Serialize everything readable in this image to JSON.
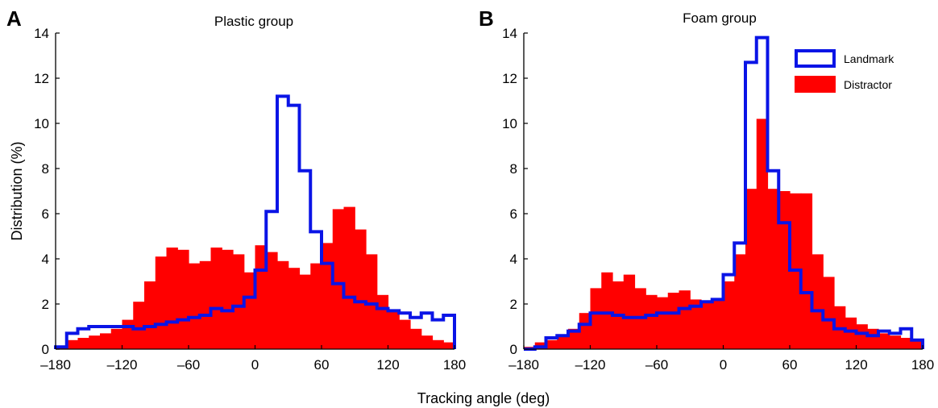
{
  "figure": {
    "shared_xlabel": "Tracking angle (deg)",
    "shared_ylabel": "Distribution (%)"
  },
  "legend": {
    "entries": [
      "Landmark",
      "Distractor"
    ],
    "placement": "top-right of panel B"
  },
  "colors": {
    "landmark": "#0a14e6",
    "distractor": "#ff0000",
    "axis": "#000000"
  },
  "chart_data": [
    {
      "type": "histogram",
      "panel_label": "A",
      "title": "Plastic group",
      "xlabel": "Tracking angle (deg)",
      "ylabel": "Distribution (%)",
      "xlim": [
        -180,
        180
      ],
      "ylim": [
        0,
        14
      ],
      "xticks": [
        "–180",
        "–120",
        "–60",
        "0",
        "60",
        "120",
        "180"
      ],
      "yticks": [
        "0",
        "2",
        "4",
        "6",
        "8",
        "10",
        "12",
        "14"
      ],
      "bin_width": 10,
      "bin_starts": [
        -180,
        -170,
        -160,
        -150,
        -140,
        -130,
        -120,
        -110,
        -100,
        -90,
        -80,
        -70,
        -60,
        -50,
        -40,
        -30,
        -20,
        -10,
        0,
        10,
        20,
        30,
        40,
        50,
        60,
        70,
        80,
        90,
        100,
        110,
        120,
        130,
        140,
        150,
        160,
        170
      ],
      "series": [
        {
          "name": "Distractor",
          "style": "filled",
          "values": [
            0.1,
            0.4,
            0.5,
            0.6,
            0.7,
            0.9,
            1.3,
            2.1,
            3.0,
            4.1,
            4.5,
            4.4,
            3.8,
            3.9,
            4.5,
            4.4,
            4.2,
            3.4,
            4.6,
            4.3,
            3.9,
            3.6,
            3.3,
            3.8,
            4.7,
            6.2,
            6.3,
            5.3,
            4.2,
            2.4,
            1.7,
            1.3,
            0.9,
            0.6,
            0.4,
            0.3
          ]
        },
        {
          "name": "Landmark",
          "style": "outline",
          "values": [
            0.1,
            0.7,
            0.9,
            1.0,
            1.0,
            1.0,
            1.0,
            0.9,
            1.0,
            1.1,
            1.2,
            1.3,
            1.4,
            1.5,
            1.8,
            1.7,
            1.9,
            2.3,
            3.5,
            6.1,
            11.2,
            10.8,
            7.9,
            5.2,
            3.8,
            2.9,
            2.3,
            2.1,
            2.0,
            1.8,
            1.7,
            1.6,
            1.4,
            1.6,
            1.3,
            1.5
          ]
        }
      ]
    },
    {
      "type": "histogram",
      "panel_label": "B",
      "title": "Foam group",
      "xlabel": "Tracking angle (deg)",
      "ylabel": "Distribution (%)",
      "xlim": [
        -180,
        180
      ],
      "ylim": [
        0,
        14
      ],
      "xticks": [
        "–180",
        "–120",
        "–60",
        "0",
        "60",
        "120",
        "180"
      ],
      "yticks": [
        "0",
        "2",
        "4",
        "6",
        "8",
        "10",
        "12",
        "14"
      ],
      "bin_width": 10,
      "bin_starts": [
        -180,
        -170,
        -160,
        -150,
        -140,
        -130,
        -120,
        -110,
        -100,
        -90,
        -80,
        -70,
        -60,
        -50,
        -40,
        -30,
        -20,
        -10,
        0,
        10,
        20,
        30,
        40,
        50,
        60,
        70,
        80,
        90,
        100,
        110,
        120,
        130,
        140,
        150,
        160,
        170
      ],
      "series": [
        {
          "name": "Distractor",
          "style": "filled",
          "values": [
            0.1,
            0.3,
            0.4,
            0.6,
            0.9,
            1.6,
            2.7,
            3.4,
            3.0,
            3.3,
            2.7,
            2.4,
            2.3,
            2.5,
            2.6,
            2.2,
            2.1,
            2.2,
            3.0,
            4.2,
            7.1,
            10.2,
            7.1,
            7.0,
            6.9,
            6.9,
            4.2,
            3.2,
            1.9,
            1.4,
            1.1,
            0.9,
            0.7,
            0.6,
            0.5,
            0.4
          ]
        },
        {
          "name": "Landmark",
          "style": "outline",
          "values": [
            0.0,
            0.1,
            0.5,
            0.6,
            0.8,
            1.1,
            1.6,
            1.6,
            1.5,
            1.4,
            1.4,
            1.5,
            1.6,
            1.6,
            1.8,
            1.9,
            2.1,
            2.2,
            3.3,
            4.7,
            12.7,
            13.8,
            7.9,
            5.6,
            3.5,
            2.5,
            1.7,
            1.3,
            0.9,
            0.8,
            0.7,
            0.6,
            0.8,
            0.7,
            0.9,
            0.4
          ]
        }
      ]
    }
  ]
}
